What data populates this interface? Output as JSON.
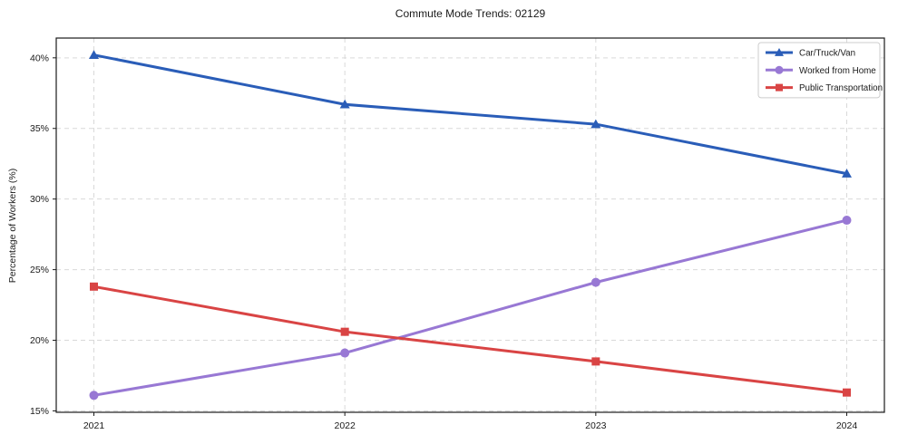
{
  "chart_data": {
    "type": "line",
    "title": "Commute Mode Trends: 02129",
    "xlabel": "",
    "ylabel": "Percentage of Workers (%)",
    "x": [
      2021,
      2022,
      2023,
      2024
    ],
    "x_tick_labels": [
      "2021",
      "2022",
      "2023",
      "2024"
    ],
    "series": [
      {
        "name": "Car/Truck/Van",
        "color": "#2a5db8",
        "marker": "triangle",
        "values": [
          40.2,
          36.7,
          35.3,
          31.8
        ]
      },
      {
        "name": "Worked from Home",
        "color": "#9878d4",
        "marker": "circle",
        "values": [
          16.1,
          19.1,
          24.1,
          28.5
        ]
      },
      {
        "name": "Public Transportation",
        "color": "#d94444",
        "marker": "square",
        "values": [
          23.8,
          20.6,
          18.5,
          16.3
        ]
      }
    ],
    "yticks": [
      15,
      20,
      25,
      30,
      35,
      40
    ],
    "ytick_labels": [
      "15%",
      "20%",
      "25%",
      "30%",
      "35%",
      "40%"
    ],
    "xlim": [
      2020.85,
      2024.15
    ],
    "ylim": [
      14.9,
      41.4
    ],
    "grid": true,
    "grid_style": "dashed",
    "legend_position": "upper right",
    "grid_color": "#d9d9d9",
    "spine_color": "#1a1a1a",
    "text_color": "#1a1a1a",
    "legend_border_color": "#cccccc",
    "background": "#ffffff"
  }
}
